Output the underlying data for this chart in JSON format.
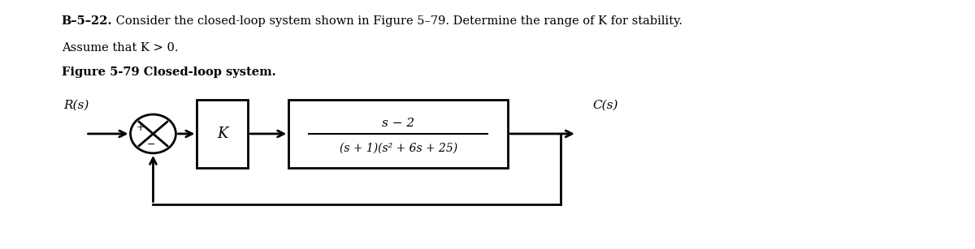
{
  "line1_bold": "B–5–22.",
  "line1_rest": " Consider the closed-loop system shown in Figure 5–79. Determine the range of K for stability.",
  "line2": "Assume that K > 0.",
  "line3": "Figure 5-79 Closed-loop system.",
  "Rs_label": "R(s)",
  "Cs_label": "C(s)",
  "K_label": "K",
  "tf_num": "s − 2",
  "tf_den": "(s + 1)(s² + 6s + 25)",
  "plus_label": "+",
  "minus_label": "−",
  "bg_color": "#ffffff",
  "line_color": "#000000",
  "text_color": "#000000",
  "figsize": [
    12.0,
    3.07
  ],
  "dpi": 100,
  "lw": 2.0
}
